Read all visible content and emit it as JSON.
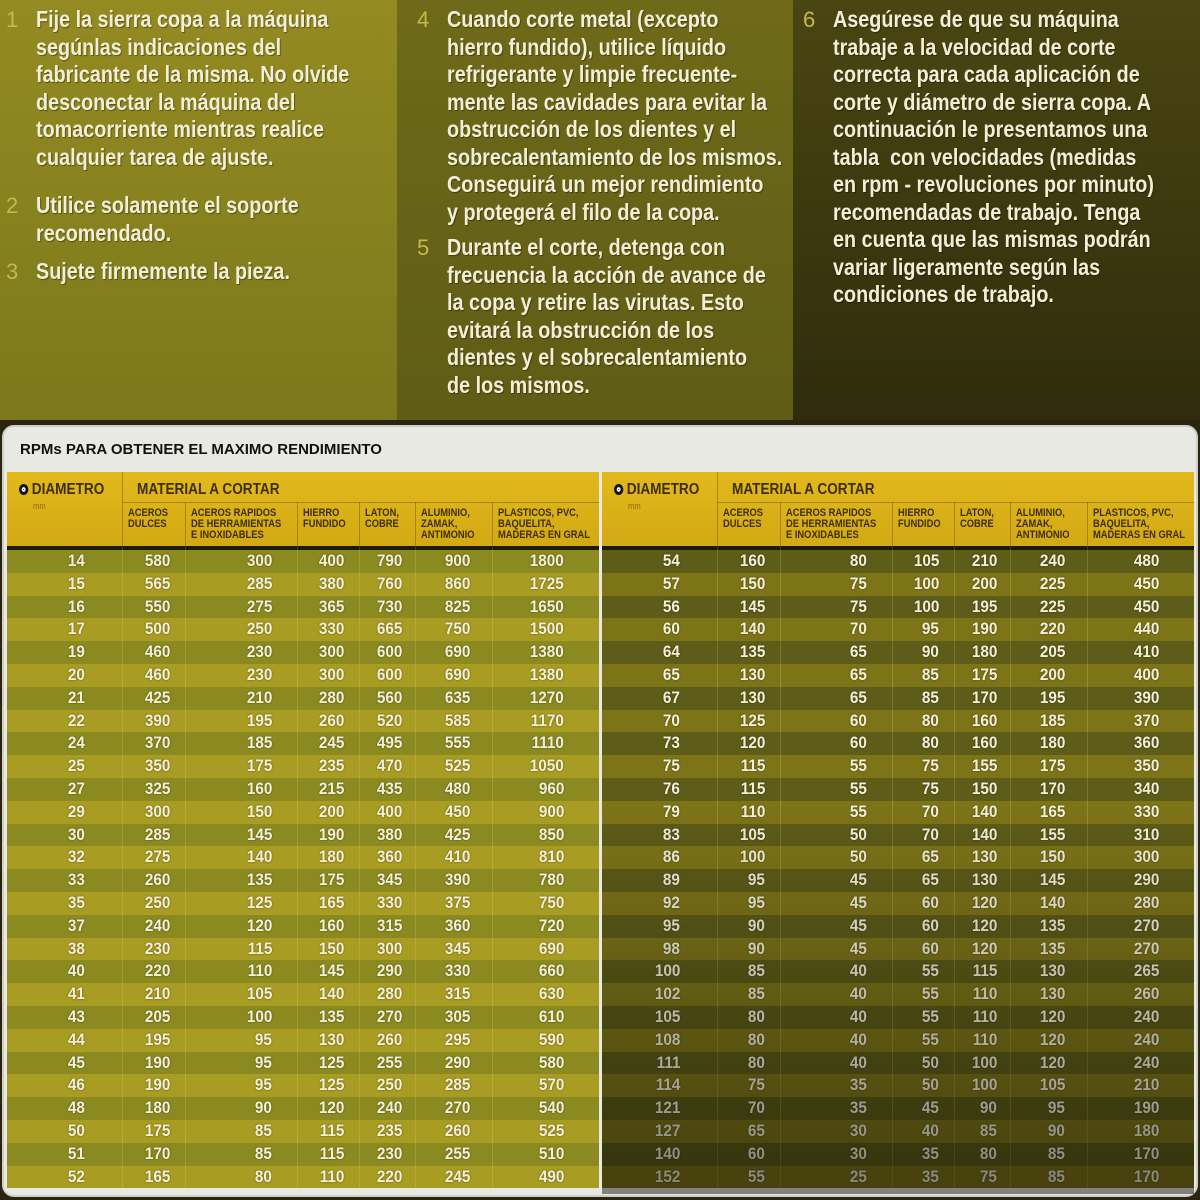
{
  "instructions": [
    {
      "n": "1",
      "text": "Fije la sierra copa a la máquina\nsegúnlas indicaciones del\nfabricante de la misma. No olvide\ndesconectar la máquina del\ntomacorriente mientras realice\ncualquier tarea de ajuste."
    },
    {
      "n": "2",
      "text": "Utilice solamente el soporte\nrecomendado."
    },
    {
      "n": "3",
      "text": "Sujete firmemente la pieza."
    },
    {
      "n": "4",
      "text": "Cuando corte metal (excepto\nhierro fundido), utilice líquido\nrefrigerante y limpie frecuente-\nmente las cavidades para evitar la\nobstrucción de los dientes y el\nsobrecalentamiento de los mismos.\nConseguirá un mejor rendimiento\ny protegerá el filo de la copa."
    },
    {
      "n": "5",
      "text": "Durante el corte, detenga con\nfrecuencia la acción de avance de\nla copa y retire las virutas. Esto\nevitará la obstrucción de los\ndientes y el sobrecalentamiento\nde los mismos."
    },
    {
      "n": "6",
      "text": "Asegúrese de que su máquina\ntrabaje a la velocidad de corte\ncorrecta para cada aplicación de\ncorte y diámetro de sierra copa. A\ncontinuación le presentamos una\ntabla  con velocidades (medidas\nen rpm - revoluciones por minuto)\nrecomendadas de trabajo. Tenga\nen cuenta que las mismas podrán\nvariar ligeramente según las\ncondiciones de trabajo."
    }
  ],
  "table": {
    "title": "RPMs PARA OBTENER EL MAXIMO RENDIMIENTO",
    "diameter_label": "DIAMETRO",
    "diameter_unit": "mm",
    "material_label": "MATERIAL A CORTAR",
    "columns": [
      "ACEROS\nDULCES",
      "ACEROS RAPIDOS\nDE HERRAMIENTAS\nE INOXIDABLES",
      "HIERRO\nFUNDIDO",
      "LATON,\nCOBRE",
      "ALUMINIO,\nZAMAK,\nANTIMONIO",
      "PLASTICOS, PVC,\nBAQUELITA,\nMADERAS EN GRAL"
    ],
    "left_rows": [
      [
        "14",
        "580",
        "300",
        "400",
        "790",
        "900",
        "1800"
      ],
      [
        "15",
        "565",
        "285",
        "380",
        "760",
        "860",
        "1725"
      ],
      [
        "16",
        "550",
        "275",
        "365",
        "730",
        "825",
        "1650"
      ],
      [
        "17",
        "500",
        "250",
        "330",
        "665",
        "750",
        "1500"
      ],
      [
        "19",
        "460",
        "230",
        "300",
        "600",
        "690",
        "1380"
      ],
      [
        "20",
        "460",
        "230",
        "300",
        "600",
        "690",
        "1380"
      ],
      [
        "21",
        "425",
        "210",
        "280",
        "560",
        "635",
        "1270"
      ],
      [
        "22",
        "390",
        "195",
        "260",
        "520",
        "585",
        "1170"
      ],
      [
        "24",
        "370",
        "185",
        "245",
        "495",
        "555",
        "1110"
      ],
      [
        "25",
        "350",
        "175",
        "235",
        "470",
        "525",
        "1050"
      ],
      [
        "27",
        "325",
        "160",
        "215",
        "435",
        "480",
        "960"
      ],
      [
        "29",
        "300",
        "150",
        "200",
        "400",
        "450",
        "900"
      ],
      [
        "30",
        "285",
        "145",
        "190",
        "380",
        "425",
        "850"
      ],
      [
        "32",
        "275",
        "140",
        "180",
        "360",
        "410",
        "810"
      ],
      [
        "33",
        "260",
        "135",
        "175",
        "345",
        "390",
        "780"
      ],
      [
        "35",
        "250",
        "125",
        "165",
        "330",
        "375",
        "750"
      ],
      [
        "37",
        "240",
        "120",
        "160",
        "315",
        "360",
        "720"
      ],
      [
        "38",
        "230",
        "115",
        "150",
        "300",
        "345",
        "690"
      ],
      [
        "40",
        "220",
        "110",
        "145",
        "290",
        "330",
        "660"
      ],
      [
        "41",
        "210",
        "105",
        "140",
        "280",
        "315",
        "630"
      ],
      [
        "43",
        "205",
        "100",
        "135",
        "270",
        "305",
        "610"
      ],
      [
        "44",
        "195",
        "95",
        "130",
        "260",
        "295",
        "590"
      ],
      [
        "45",
        "190",
        "95",
        "125",
        "255",
        "290",
        "580"
      ],
      [
        "46",
        "190",
        "95",
        "125",
        "250",
        "285",
        "570"
      ],
      [
        "48",
        "180",
        "90",
        "120",
        "240",
        "270",
        "540"
      ],
      [
        "50",
        "175",
        "85",
        "115",
        "235",
        "260",
        "525"
      ],
      [
        "51",
        "170",
        "85",
        "115",
        "230",
        "255",
        "510"
      ],
      [
        "52",
        "165",
        "80",
        "110",
        "220",
        "245",
        "490"
      ]
    ],
    "right_rows": [
      [
        "54",
        "160",
        "80",
        "105",
        "210",
        "240",
        "480"
      ],
      [
        "57",
        "150",
        "75",
        "100",
        "200",
        "225",
        "450"
      ],
      [
        "56",
        "145",
        "75",
        "100",
        "195",
        "225",
        "450"
      ],
      [
        "60",
        "140",
        "70",
        "95",
        "190",
        "220",
        "440"
      ],
      [
        "64",
        "135",
        "65",
        "90",
        "180",
        "205",
        "410"
      ],
      [
        "65",
        "130",
        "65",
        "85",
        "175",
        "200",
        "400"
      ],
      [
        "67",
        "130",
        "65",
        "85",
        "170",
        "195",
        "390"
      ],
      [
        "70",
        "125",
        "60",
        "80",
        "160",
        "185",
        "370"
      ],
      [
        "73",
        "120",
        "60",
        "80",
        "160",
        "180",
        "360"
      ],
      [
        "75",
        "115",
        "55",
        "75",
        "155",
        "175",
        "350"
      ],
      [
        "76",
        "115",
        "55",
        "75",
        "150",
        "170",
        "340"
      ],
      [
        "79",
        "110",
        "55",
        "70",
        "140",
        "165",
        "330"
      ],
      [
        "83",
        "105",
        "50",
        "70",
        "140",
        "155",
        "310"
      ],
      [
        "86",
        "100",
        "50",
        "65",
        "130",
        "150",
        "300"
      ],
      [
        "89",
        "95",
        "45",
        "65",
        "130",
        "145",
        "290"
      ],
      [
        "92",
        "95",
        "45",
        "60",
        "120",
        "140",
        "280"
      ],
      [
        "95",
        "90",
        "45",
        "60",
        "120",
        "135",
        "270"
      ],
      [
        "98",
        "90",
        "45",
        "60",
        "120",
        "135",
        "270"
      ],
      [
        "100",
        "85",
        "40",
        "55",
        "115",
        "130",
        "265"
      ],
      [
        "102",
        "85",
        "40",
        "55",
        "110",
        "130",
        "260"
      ],
      [
        "105",
        "80",
        "40",
        "55",
        "110",
        "120",
        "240"
      ],
      [
        "108",
        "80",
        "40",
        "55",
        "110",
        "120",
        "240"
      ],
      [
        "111",
        "80",
        "40",
        "50",
        "100",
        "120",
        "240"
      ],
      [
        "114",
        "75",
        "35",
        "50",
        "100",
        "105",
        "210"
      ],
      [
        "121",
        "70",
        "35",
        "45",
        "90",
        "95",
        "190"
      ],
      [
        "127",
        "65",
        "30",
        "40",
        "85",
        "90",
        "180"
      ],
      [
        "140",
        "60",
        "30",
        "35",
        "80",
        "85",
        "170"
      ],
      [
        "152",
        "55",
        "25",
        "35",
        "75",
        "85",
        "170"
      ]
    ]
  }
}
